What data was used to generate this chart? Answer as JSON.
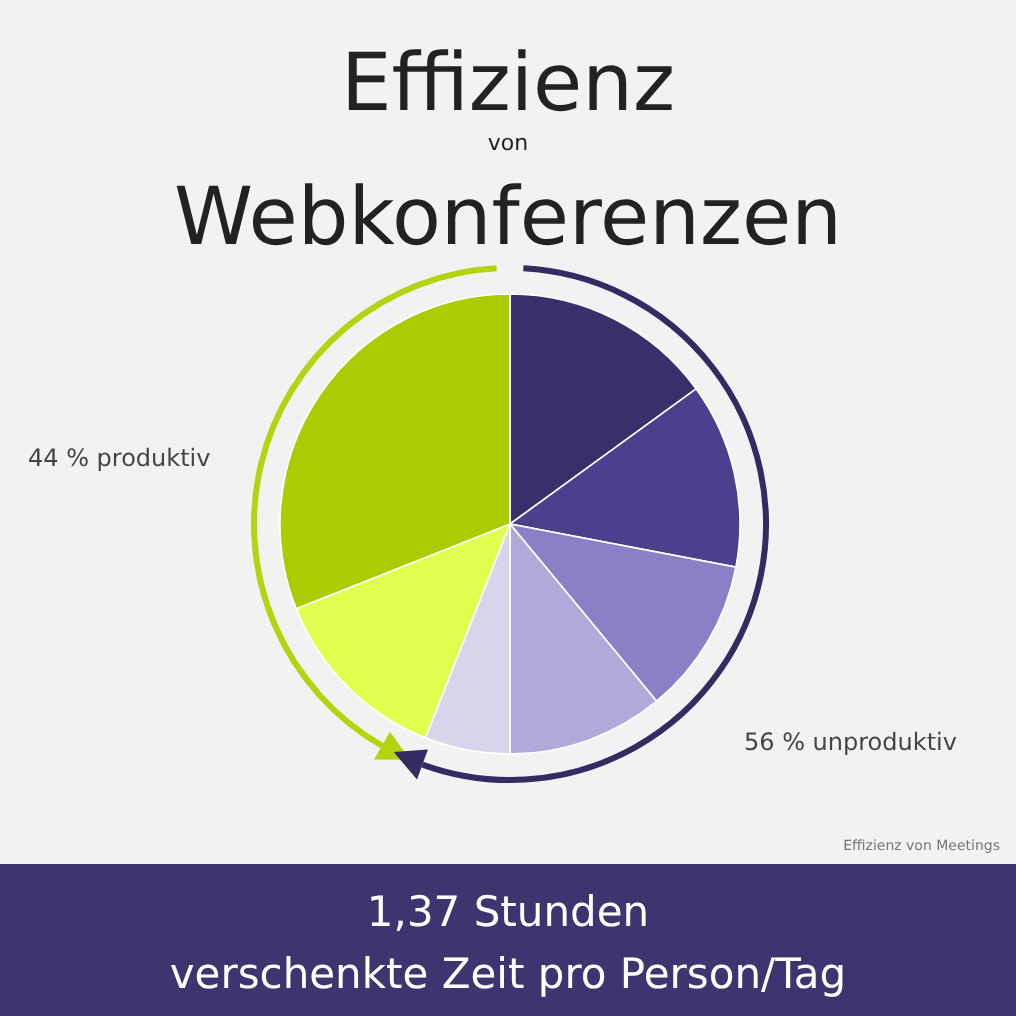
{
  "chart_data": {
    "type": "pie",
    "title": "Effizienz von Webkonferenzen",
    "categories": [
      null,
      null,
      null,
      null,
      null,
      null,
      null
    ],
    "values": [
      15,
      13,
      11,
      11,
      6,
      13,
      31
    ],
    "colors": [
      "#3b2f6b",
      "#4e3f8e",
      "#8b80c6",
      "#b1a9da",
      "#d8d4ec",
      "#e0ff4f",
      "#abcc00"
    ],
    "annotations": [
      "44 % produktiv",
      "56 % unproduktiv",
      "Effizienz von Meetings",
      "1,37 Stunden",
      "verschenkte Zeit pro Person/Tag"
    ]
  }
}
